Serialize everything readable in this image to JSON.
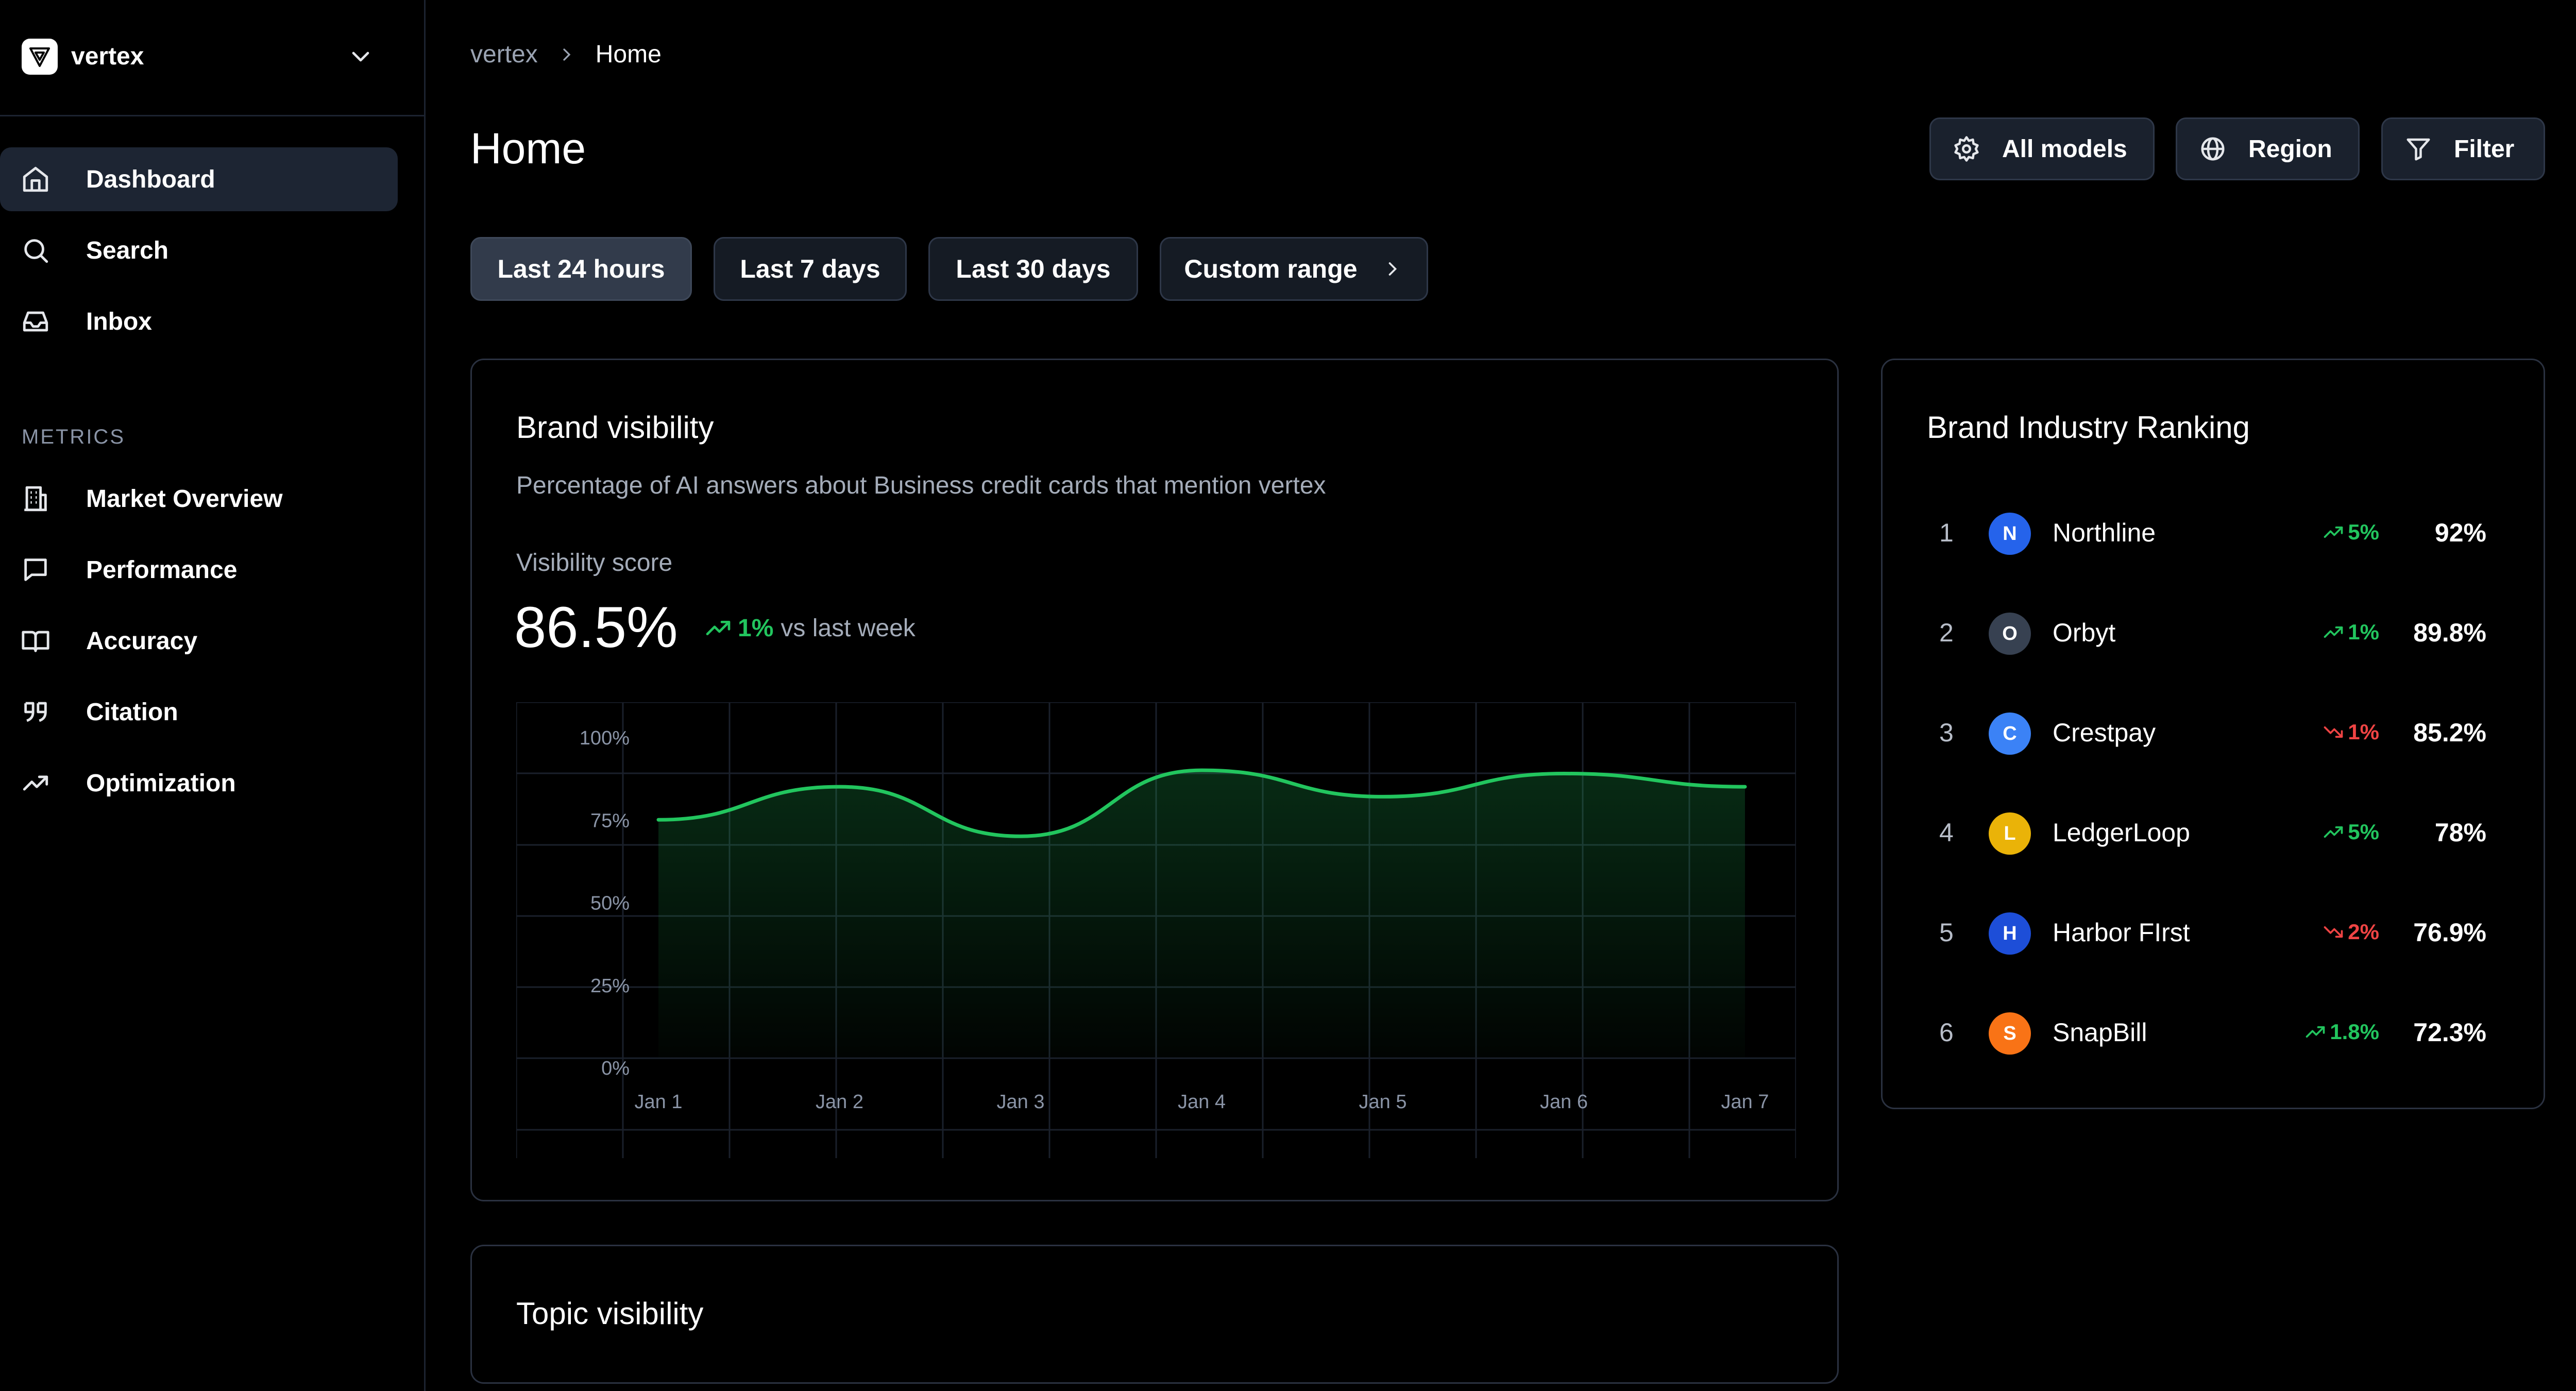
{
  "workspace": {
    "name": "vertex",
    "logo_icon": "vertex-logo",
    "menu_icon": "chevron-down-icon"
  },
  "sidebar": {
    "items": [
      {
        "label": "Dashboard",
        "icon": "home-icon",
        "active": true
      },
      {
        "label": "Search",
        "icon": "search-icon"
      },
      {
        "label": "Inbox",
        "icon": "inbox-icon"
      }
    ],
    "metrics_section": "METRICS",
    "metrics_items": [
      {
        "label": "Market Overview",
        "icon": "building-icon"
      },
      {
        "label": "Performance",
        "icon": "message-square-icon"
      },
      {
        "label": "Accuracy",
        "icon": "book-open-icon"
      },
      {
        "label": "Citation",
        "icon": "quote-icon"
      },
      {
        "label": "Optimization",
        "icon": "trending-up-icon"
      }
    ]
  },
  "breadcrumb": {
    "root": "vertex",
    "current": "Home"
  },
  "page_title": "Home",
  "toolbar": {
    "all_models": "All models",
    "region": "Region",
    "filter": "Filter"
  },
  "ranges": [
    "Last 24 hours",
    "Last 7 days",
    "Last 30 days",
    "Custom range"
  ],
  "active_range": "Last 24 hours",
  "brand_visibility": {
    "title": "Brand visibility",
    "subtitle": "Percentage of AI answers about Business credit cards that mention vertex",
    "score_label": "Visibility score",
    "score_value": "86.5%",
    "delta": "1%",
    "delta_suffix": "vs last week"
  },
  "chart_data": {
    "type": "area",
    "x": [
      "Jan 1",
      "Jan 2",
      "Jan 3",
      "Jan 4",
      "Jan 5",
      "Jan 6",
      "Jan 7"
    ],
    "series": [
      {
        "values": [
          75,
          85,
          70,
          90,
          82,
          89,
          85
        ]
      }
    ],
    "ylim": [
      0,
      100
    ],
    "yticks": [
      "100%",
      "75%",
      "50%",
      "25%",
      "0%"
    ],
    "grid": true,
    "line_color": "#22c55e"
  },
  "ranking": {
    "title": "Brand Industry Ranking",
    "rows": [
      {
        "rank": "1",
        "initial": "N",
        "name": "Northline",
        "change": "5%",
        "direction": "up",
        "value": "92%",
        "color": "#2563eb"
      },
      {
        "rank": "2",
        "initial": "O",
        "name": "Orbyt",
        "change": "1%",
        "direction": "up",
        "value": "89.8%",
        "color": "#374151"
      },
      {
        "rank": "3",
        "initial": "C",
        "name": "Crestpay",
        "change": "1%",
        "direction": "down",
        "value": "85.2%",
        "color": "#3b82f6"
      },
      {
        "rank": "4",
        "initial": "L",
        "name": "LedgerLoop",
        "change": "5%",
        "direction": "up",
        "value": "78%",
        "color": "#eab308"
      },
      {
        "rank": "5",
        "initial": "H",
        "name": "Harbor FIrst",
        "change": "2%",
        "direction": "down",
        "value": "76.9%",
        "color": "#1d4ed8"
      },
      {
        "rank": "6",
        "initial": "S",
        "name": "SnapBill",
        "change": "1.8%",
        "direction": "up",
        "value": "72.3%",
        "color": "#f97316"
      }
    ]
  },
  "topic_visibility": {
    "title": "Topic visibility"
  }
}
